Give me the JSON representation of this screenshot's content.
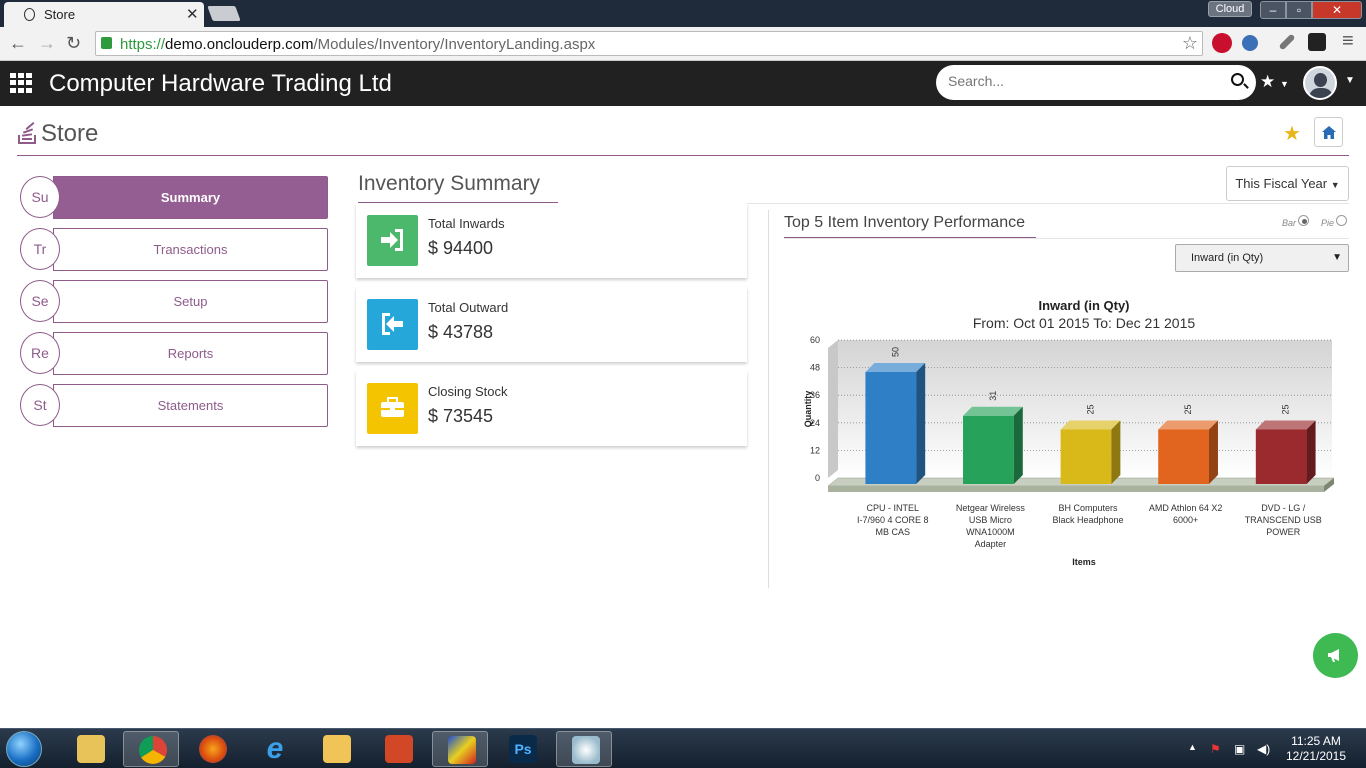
{
  "browser": {
    "tab_title": "Store",
    "window_cloud_label": "Cloud",
    "url_scheme": "https://",
    "url_host": "demo.onclouderp.com",
    "url_path": "/Modules/Inventory/InventoryLanding.aspx"
  },
  "app": {
    "company_name": "Computer Hardware Trading Ltd",
    "search_placeholder": "Search..."
  },
  "page": {
    "title": "Store"
  },
  "nav": {
    "items": [
      {
        "abbr": "Su",
        "label": "Summary",
        "active": true
      },
      {
        "abbr": "Tr",
        "label": "Transactions",
        "active": false
      },
      {
        "abbr": "Se",
        "label": "Setup",
        "active": false
      },
      {
        "abbr": "Re",
        "label": "Reports",
        "active": false
      },
      {
        "abbr": "St",
        "label": "Statements",
        "active": false
      }
    ]
  },
  "summary": {
    "title": "Inventory Summary",
    "period_button": "This Fiscal Year",
    "kpis": [
      {
        "label": "Total Inwards",
        "value": "$ 94400",
        "color": "#4cb86b",
        "icon": "sign-in-icon"
      },
      {
        "label": "Total Outward",
        "value": "$ 43788",
        "color": "#25a7d9",
        "icon": "sign-out-icon"
      },
      {
        "label": "Closing Stock",
        "value": "$ 73545",
        "color": "#f5c400",
        "icon": "briefcase-icon"
      }
    ]
  },
  "performance": {
    "title": "Top 5 Item Inventory Performance",
    "bar_label": "Bar",
    "pie_label": "Pie",
    "selected_view": "Bar",
    "metric_select": "Inward (in Qty)"
  },
  "chart_data": {
    "type": "bar",
    "title": "Inward (in Qty)",
    "subtitle": "From: Oct 01 2015 To: Dec 21 2015",
    "xlabel": "Items",
    "ylabel": "Quantity",
    "ylim": [
      0,
      60
    ],
    "yticks": [
      0,
      12,
      24,
      36,
      48,
      60
    ],
    "categories": [
      [
        "CPU - INTEL",
        "I-7/960 4 CORE 8",
        "MB CAS"
      ],
      [
        "Netgear Wireless",
        "USB Micro",
        "WNA1000M",
        "Adapter"
      ],
      [
        "BH Computers",
        "Black Headphone"
      ],
      [
        "AMD Athlon 64 X2",
        "6000+"
      ],
      [
        "DVD - LG /",
        "TRANSCEND USB",
        "POWER"
      ]
    ],
    "values": [
      50,
      31,
      25,
      25,
      25
    ],
    "colors": [
      "#2f7fc6",
      "#27a25b",
      "#d9b81a",
      "#e2651f",
      "#9a2a2e"
    ],
    "grid": true,
    "data_labels": true
  },
  "taskbar": {
    "time": "11:25 AM",
    "date": "12/21/2015"
  }
}
